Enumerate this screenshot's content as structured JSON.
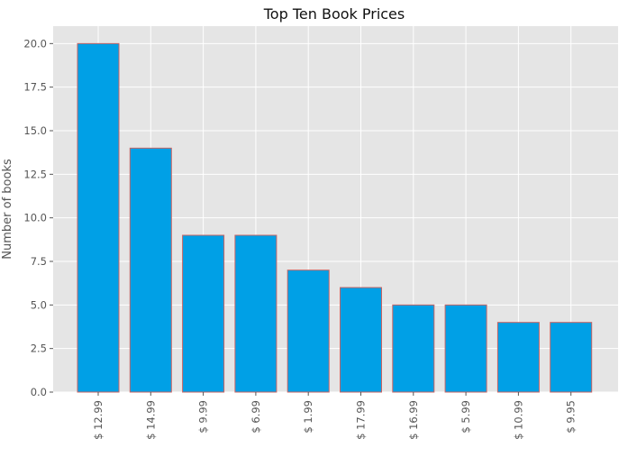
{
  "chart_data": {
    "type": "bar",
    "title": "Top Ten Book Prices",
    "xlabel": "",
    "ylabel": "Number of books",
    "categories": [
      "$ 12.99",
      "$ 14.99",
      "$ 9.99",
      "$ 6.99",
      "$ 1.99",
      "$ 17.99",
      "$ 16.99",
      "$ 5.99",
      "$ 10.99",
      "$ 9.95"
    ],
    "values": [
      20,
      14,
      9,
      9,
      7,
      6,
      5,
      5,
      4,
      4
    ],
    "ylim": [
      0,
      21
    ],
    "yticks": [
      "0.0",
      "2.5",
      "5.0",
      "7.5",
      "10.0",
      "12.5",
      "15.0",
      "17.5",
      "20.0"
    ],
    "grid": true,
    "legend": "none"
  },
  "colors": {
    "bar_fill": "#00a0e6",
    "bar_edge": "#c86464",
    "plot_background": "#e5e5e5",
    "grid": "#ffffff"
  }
}
